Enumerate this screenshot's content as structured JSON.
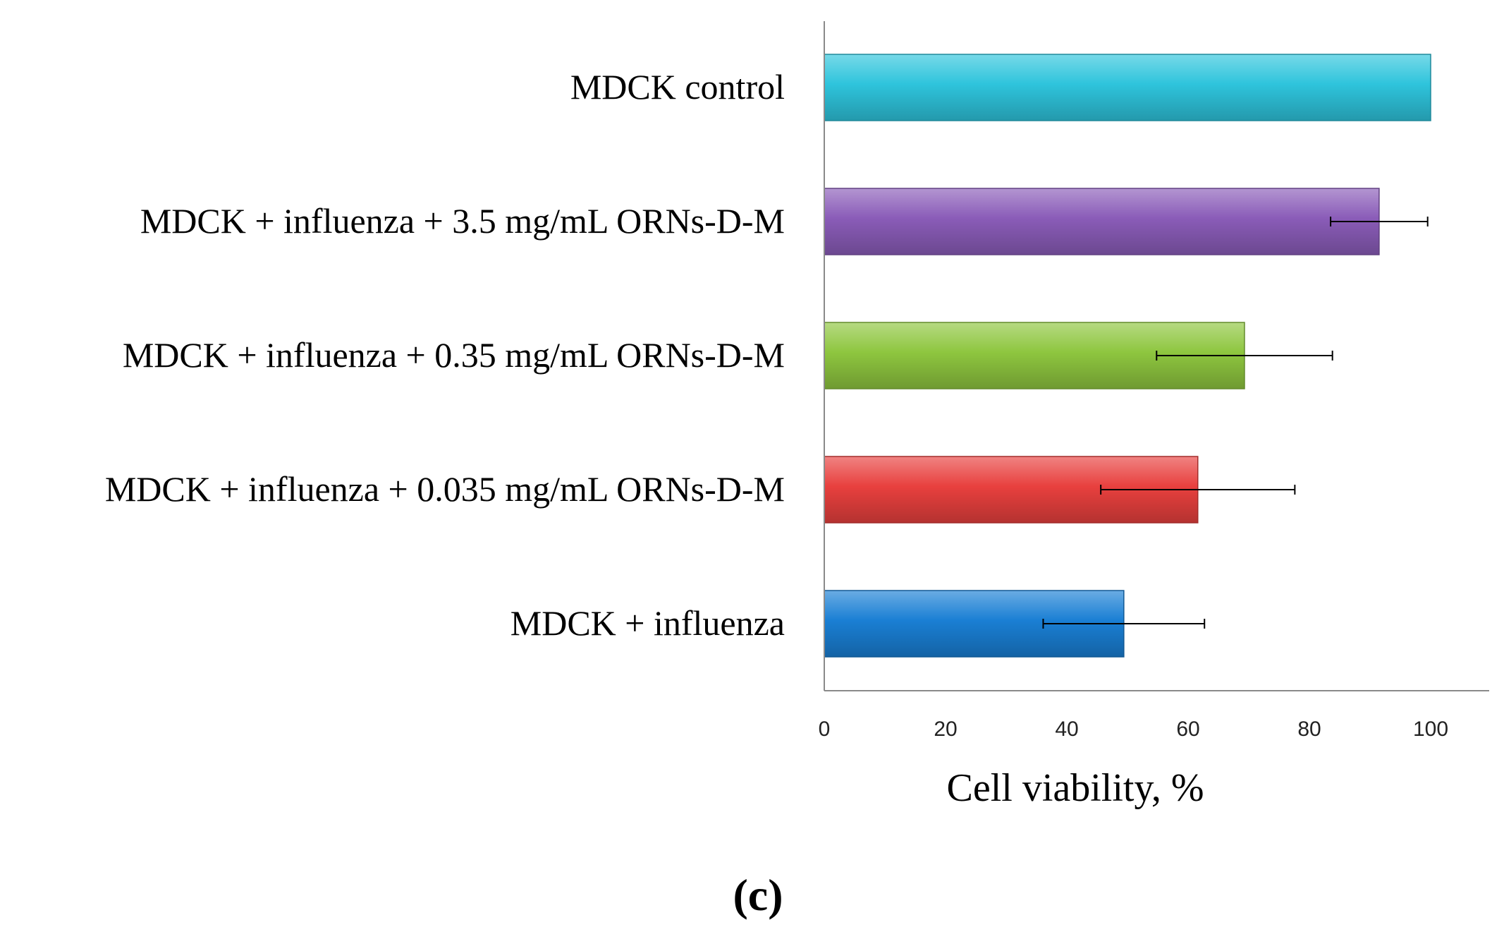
{
  "chart_data": {
    "type": "bar",
    "orientation": "horizontal",
    "title": "",
    "xlabel": "Cell viability, %",
    "ylabel": "",
    "xlim": [
      0,
      110
    ],
    "xticks": [
      0,
      20,
      40,
      60,
      80,
      100
    ],
    "grid": false,
    "legend": "none",
    "panel_label": "(c)",
    "categories": [
      "MDCK control",
      "MDCK + influenza + 3.5 mg/mL ORNs-D-M",
      "MDCK + influenza + 0.35 mg/mL ORNs-D-M",
      "MDCK + influenza + 0.035 mg/mL ORNs-D-M",
      "MDCK + influenza"
    ],
    "values": [
      100,
      91.5,
      69.3,
      61.6,
      49.4
    ],
    "errors": [
      0,
      8.0,
      14.5,
      16.0,
      13.3
    ],
    "colors": [
      "#2ec4dc",
      "#8a5cb8",
      "#8ec63f",
      "#e8403e",
      "#1a7fd4"
    ]
  }
}
